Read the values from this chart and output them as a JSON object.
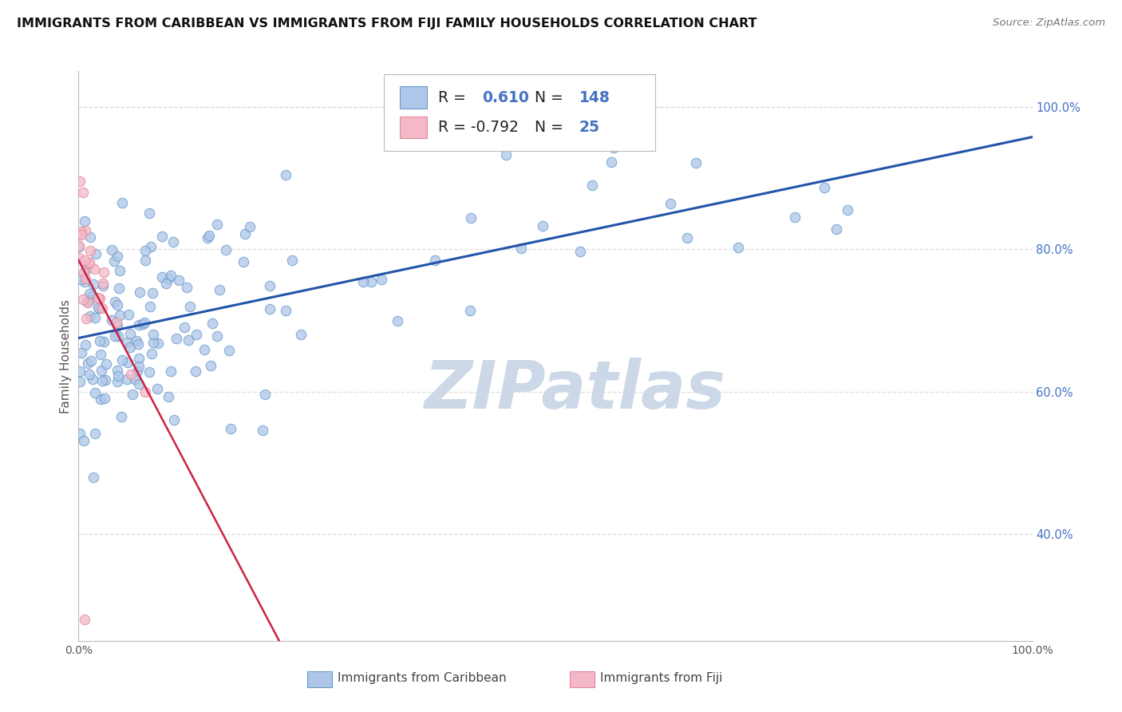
{
  "title": "IMMIGRANTS FROM CARIBBEAN VS IMMIGRANTS FROM FIJI FAMILY HOUSEHOLDS CORRELATION CHART",
  "source": "Source: ZipAtlas.com",
  "ylabel": "Family Households",
  "blue_color": "#aec6e8",
  "blue_edge": "#6699cc",
  "pink_color": "#f4b8c8",
  "pink_edge": "#e08898",
  "blue_line_color": "#2255aa",
  "pink_line_color": "#cc2244",
  "watermark": "ZIPatlas",
  "grid_color": "#dddddd",
  "background_color": "#ffffff",
  "title_fontsize": 11.5,
  "source_fontsize": 9.5,
  "axis_label_fontsize": 11,
  "watermark_fontsize": 60,
  "watermark_color": "#ccd8e8",
  "dpi": 100,
  "xlim": [
    0.0,
    1.0
  ],
  "ylim": [
    0.25,
    1.05
  ],
  "ytick_values": [
    0.4,
    0.6,
    0.8,
    1.0
  ],
  "ytick_labels": [
    "40.0%",
    "60.0%",
    "80.0%",
    "100.0%"
  ],
  "xtick_values": [
    0.0,
    1.0
  ],
  "xtick_labels": [
    "0.0%",
    "100.0%"
  ],
  "legend_R1": "0.610",
  "legend_N1": "148",
  "legend_R2": "-0.792",
  "legend_N2": "25",
  "scatter_size": 80,
  "scatter_alpha": 0.75
}
